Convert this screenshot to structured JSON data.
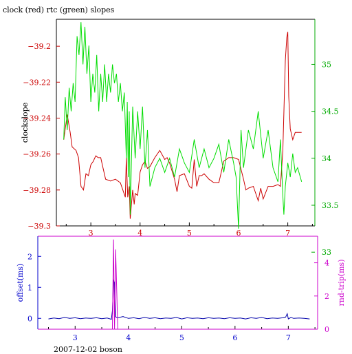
{
  "chart_data": [
    {
      "type": "line",
      "title": "clock (red) rtc (green) slopes",
      "ylabel": "clockslope",
      "xlim": [
        2.3,
        7.55
      ],
      "ylim": [
        -39.3,
        -39.185
      ],
      "y2lim": [
        33.28,
        35.48
      ],
      "x_ticks": [
        3,
        4,
        5,
        6,
        7
      ],
      "y_ticks": [
        -39.2,
        -39.22,
        -39.24,
        -39.26,
        -39.28,
        -39.3
      ],
      "y2_ticks": [
        33,
        33.5,
        34,
        34.5,
        35
      ],
      "colors": {
        "clock": "#cc0000",
        "rtc": "#00dd00",
        "axis_left": "#cc0000",
        "axis_right": "#00aa00"
      },
      "series": [
        {
          "axis": "left",
          "x": [
            2.45,
            2.52,
            2.58,
            2.62,
            2.7,
            2.75,
            2.8,
            2.85,
            2.9,
            2.95,
            3.0,
            3.05,
            3.1,
            3.15,
            3.2,
            3.25,
            3.3,
            3.4,
            3.5,
            3.6,
            3.7,
            3.72,
            3.75,
            3.78,
            3.8,
            3.85,
            3.88,
            3.9,
            3.95,
            4.0,
            4.05,
            4.1,
            4.15,
            4.2,
            4.3,
            4.4,
            4.5,
            4.55,
            4.6,
            4.7,
            4.75,
            4.8,
            4.9,
            5.0,
            5.05,
            5.1,
            5.15,
            5.2,
            5.25,
            5.3,
            5.4,
            5.5,
            5.6,
            5.7,
            5.8,
            5.9,
            6.0,
            6.1,
            6.15,
            6.2,
            6.3,
            6.4,
            6.45,
            6.5,
            6.6,
            6.7,
            6.8,
            6.85,
            6.9,
            6.95,
            6.98,
            7.0,
            7.02,
            7.05,
            7.1,
            7.15,
            7.2,
            7.28
          ],
          "y": [
            -39.252,
            -39.238,
            -39.248,
            -39.256,
            -39.258,
            -39.262,
            -39.278,
            -39.28,
            -39.271,
            -39.272,
            -39.266,
            -39.264,
            -39.261,
            -39.262,
            -39.262,
            -39.268,
            -39.274,
            -39.275,
            -39.274,
            -39.276,
            -39.284,
            -39.262,
            -39.284,
            -39.278,
            -39.296,
            -39.28,
            -39.288,
            -39.282,
            -39.283,
            -39.27,
            -39.266,
            -39.264,
            -39.268,
            -39.267,
            -39.262,
            -39.258,
            -39.263,
            -39.262,
            -39.265,
            -39.274,
            -39.281,
            -39.272,
            -39.271,
            -39.278,
            -39.279,
            -39.263,
            -39.278,
            -39.272,
            -39.272,
            -39.271,
            -39.274,
            -39.276,
            -39.276,
            -39.264,
            -39.262,
            -39.262,
            -39.263,
            -39.274,
            -39.28,
            -39.279,
            -39.278,
            -39.286,
            -39.279,
            -39.285,
            -39.278,
            -39.278,
            -39.277,
            -39.278,
            -39.258,
            -39.208,
            -39.195,
            -39.192,
            -39.228,
            -39.246,
            -39.252,
            -39.248,
            -39.248,
            -39.248
          ]
        },
        {
          "axis": "right",
          "x": [
            2.45,
            2.48,
            2.52,
            2.56,
            2.6,
            2.64,
            2.68,
            2.72,
            2.76,
            2.8,
            2.84,
            2.88,
            2.92,
            2.96,
            3.0,
            3.04,
            3.08,
            3.12,
            3.16,
            3.2,
            3.24,
            3.28,
            3.32,
            3.36,
            3.4,
            3.44,
            3.48,
            3.52,
            3.56,
            3.6,
            3.64,
            3.68,
            3.72,
            3.74,
            3.76,
            3.78,
            3.8,
            3.85,
            3.9,
            3.95,
            4.0,
            4.05,
            4.1,
            4.15,
            4.2,
            4.3,
            4.4,
            4.5,
            4.6,
            4.7,
            4.8,
            4.9,
            5.0,
            5.1,
            5.2,
            5.3,
            5.4,
            5.5,
            5.6,
            5.7,
            5.8,
            5.9,
            5.95,
            6.0,
            6.05,
            6.1,
            6.2,
            6.3,
            6.4,
            6.5,
            6.6,
            6.7,
            6.8,
            6.85,
            6.9,
            6.92,
            6.95,
            7.0,
            7.05,
            7.1,
            7.15,
            7.2,
            7.28
          ],
          "y": [
            34.2,
            34.65,
            34.3,
            34.75,
            34.5,
            34.8,
            34.6,
            35.3,
            35.1,
            35.45,
            35.0,
            35.4,
            34.9,
            35.2,
            34.6,
            34.9,
            34.7,
            35.1,
            34.5,
            34.9,
            34.6,
            35.0,
            34.6,
            34.9,
            34.7,
            35.0,
            34.8,
            34.9,
            34.6,
            34.8,
            34.5,
            34.7,
            34.0,
            34.6,
            33.8,
            34.5,
            33.4,
            34.55,
            34.0,
            34.5,
            34.1,
            34.55,
            33.9,
            34.3,
            33.7,
            33.9,
            34.0,
            33.85,
            34.0,
            33.8,
            34.1,
            33.95,
            33.85,
            34.2,
            33.9,
            34.1,
            33.9,
            34.0,
            34.15,
            33.85,
            34.2,
            33.95,
            33.8,
            33.25,
            34.3,
            33.9,
            34.3,
            34.1,
            34.5,
            34.0,
            34.3,
            33.9,
            33.75,
            34.2,
            33.6,
            33.4,
            33.7,
            33.95,
            33.8,
            34.05,
            33.85,
            33.9,
            33.75
          ]
        }
      ]
    },
    {
      "type": "line",
      "title": "",
      "ylabel": "offset(ms)",
      "y2label": "rnd-trip(ms)",
      "xlabel": "2007-12-02 boson",
      "xlim": [
        2.3,
        7.55
      ],
      "ylim": [
        -0.35,
        2.65
      ],
      "y2lim": [
        0,
        5.6
      ],
      "x_ticks": [
        3,
        4,
        5,
        6,
        7
      ],
      "y_ticks": [
        0,
        1,
        2
      ],
      "y2_ticks": [
        0,
        2,
        4
      ],
      "colors": {
        "offset": "#0000aa",
        "rnd_trip": "#cc00cc",
        "axis_left": "#0000cc",
        "axis_right": "#cc00cc"
      },
      "series": [
        {
          "axis": "left",
          "x": [
            2.5,
            2.6,
            2.7,
            2.8,
            2.9,
            3.0,
            3.1,
            3.2,
            3.3,
            3.4,
            3.5,
            3.6,
            3.68,
            3.7,
            3.72,
            3.74,
            3.76,
            3.8,
            3.9,
            4.0,
            4.1,
            4.2,
            4.3,
            4.4,
            4.5,
            4.6,
            4.7,
            4.8,
            4.9,
            5.0,
            5.1,
            5.2,
            5.3,
            5.4,
            5.5,
            5.6,
            5.7,
            5.8,
            5.9,
            6.0,
            6.1,
            6.2,
            6.3,
            6.4,
            6.5,
            6.6,
            6.7,
            6.8,
            6.9,
            6.95,
            6.98,
            7.0,
            7.05,
            7.1,
            7.2,
            7.3,
            7.4
          ],
          "y": [
            -0.02,
            0.01,
            -0.01,
            0.03,
            0.0,
            0.02,
            -0.01,
            0.01,
            0.0,
            0.02,
            -0.01,
            0.01,
            -0.03,
            0.25,
            1.25,
            1.15,
            0.05,
            0.02,
            0.06,
            0.0,
            0.02,
            -0.01,
            0.03,
            0.0,
            0.02,
            -0.01,
            0.01,
            0.0,
            0.03,
            -0.02,
            0.02,
            0.0,
            0.01,
            -0.01,
            0.02,
            0.0,
            0.01,
            -0.01,
            0.02,
            0.0,
            0.01,
            -0.02,
            0.02,
            0.0,
            0.03,
            -0.01,
            0.01,
            0.0,
            0.02,
            0.04,
            0.15,
            -0.02,
            0.03,
            0.0,
            0.01,
            0.0,
            -0.02
          ]
        },
        {
          "axis": "right",
          "x": [
            2.5,
            3.0,
            3.5,
            3.7,
            3.72,
            3.74,
            3.76,
            3.8,
            4.0,
            4.5,
            5.0,
            5.5,
            6.0,
            6.5,
            7.0,
            7.4
          ],
          "y": [
            0.0,
            0.0,
            0.0,
            0.0,
            5.4,
            0.0,
            4.8,
            0.0,
            0.0,
            0.0,
            0.0,
            0.0,
            0.0,
            0.0,
            0.0,
            0.0
          ]
        }
      ]
    }
  ]
}
